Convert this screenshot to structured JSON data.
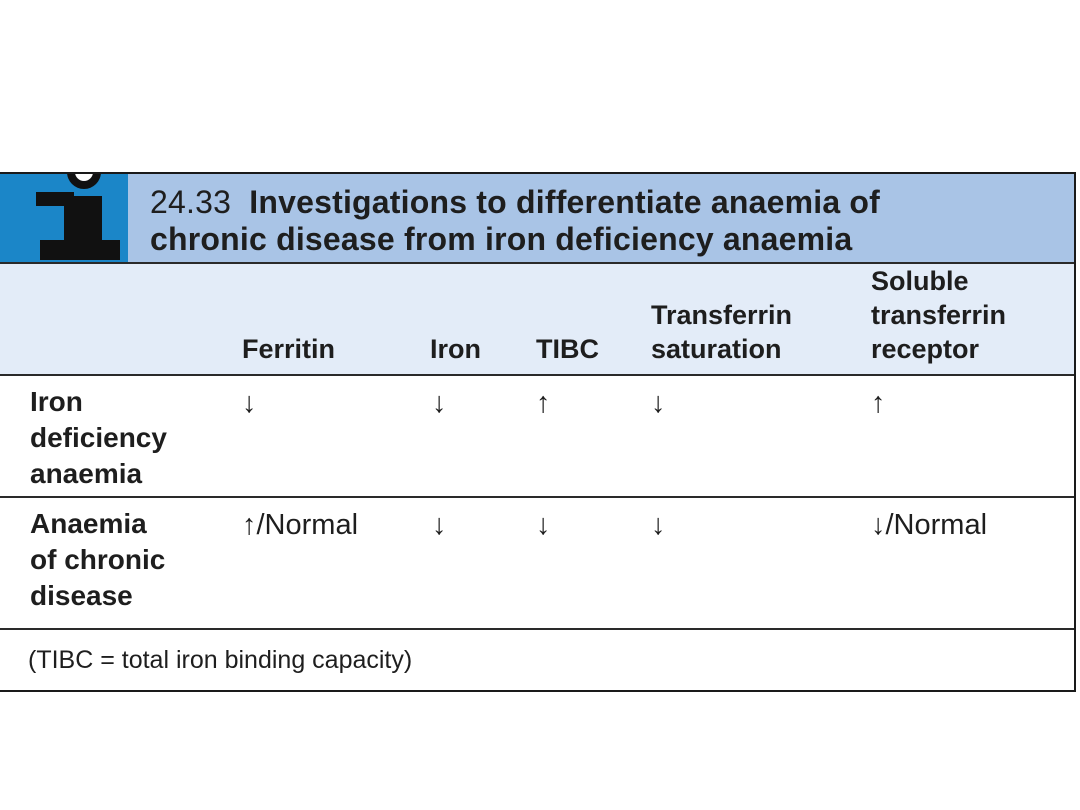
{
  "table": {
    "number": "24.33",
    "title_line1": "Investigations to differentiate anaemia of",
    "title_line2": "chronic disease from iron deficiency anaemia",
    "columns": [
      {
        "lines": [
          "Ferritin"
        ]
      },
      {
        "lines": [
          "Iron"
        ]
      },
      {
        "lines": [
          "TIBC"
        ]
      },
      {
        "lines": [
          "Transferrin",
          "saturation"
        ]
      },
      {
        "lines": [
          "Soluble",
          "transferrin",
          "receptor"
        ]
      }
    ],
    "rows": [
      {
        "label_lines": [
          "Iron",
          "deficiency",
          "anaemia"
        ],
        "cells": [
          "↓",
          "↓",
          "↑",
          "↓",
          "↑"
        ]
      },
      {
        "label_lines": [
          "Anaemia",
          "of chronic",
          "disease"
        ],
        "cells": [
          "↑/Normal",
          "↓",
          "↓",
          "↓",
          "↓/Normal"
        ]
      }
    ],
    "footnote": "(TIBC = total iron binding capacity)"
  },
  "icon": {
    "name": "info-icon",
    "box_color": "#1b86c8",
    "band_color": "#a9c4e6",
    "header_color": "#e3ecf8"
  }
}
